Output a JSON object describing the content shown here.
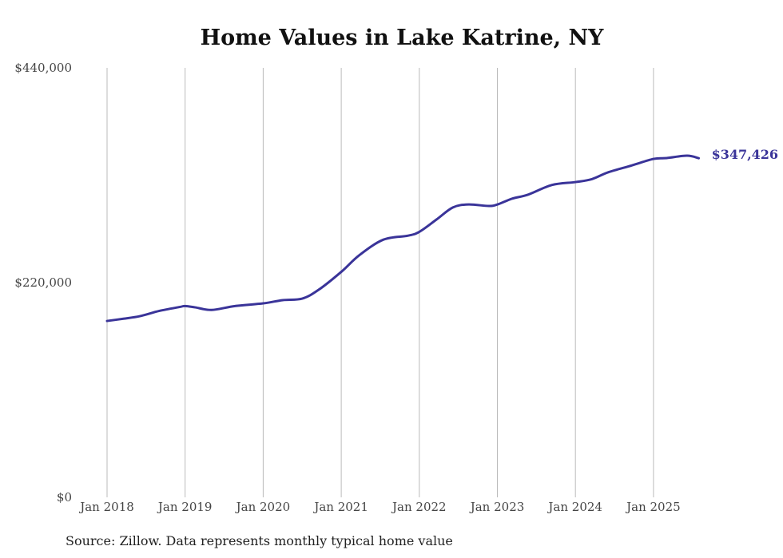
{
  "chart_data": {
    "type": "line",
    "title": "Home Values in Lake Katrine, NY",
    "source": "Source: Zillow. Data represents monthly typical home value",
    "xlabel": "",
    "ylabel": "",
    "ylim": [
      0,
      440000
    ],
    "y_ticks": [
      0,
      220000,
      440000
    ],
    "y_tick_labels": [
      "$0",
      "$220,000",
      "$440,000"
    ],
    "x_ticks": [
      2018,
      2019,
      2020,
      2021,
      2022,
      2023,
      2024,
      2025
    ],
    "x_tick_labels": [
      "Jan 2018",
      "Jan 2019",
      "Jan 2020",
      "Jan 2021",
      "Jan 2022",
      "Jan 2023",
      "Jan 2024",
      "Jan 2025"
    ],
    "grid": "vertical",
    "line_color": "#3a3499",
    "end_label": "$347,426",
    "series": [
      {
        "name": "Typical home value",
        "x": [
          2018.0,
          2018.21,
          2018.42,
          2018.67,
          2018.93,
          2019.0,
          2019.13,
          2019.34,
          2019.64,
          2020.0,
          2020.25,
          2020.5,
          2020.71,
          2021.0,
          2021.23,
          2021.54,
          2021.85,
          2022.0,
          2022.22,
          2022.43,
          2022.63,
          2022.89,
          2023.0,
          2023.19,
          2023.39,
          2023.7,
          2024.0,
          2024.21,
          2024.42,
          2024.72,
          2025.0,
          2025.17,
          2025.43,
          2025.58
        ],
        "values": [
          180700,
          183000,
          185600,
          191000,
          195000,
          196000,
          194600,
          192000,
          196000,
          198700,
          202000,
          203600,
          212600,
          231000,
          248000,
          264000,
          268000,
          272000,
          284600,
          297000,
          300000,
          298500,
          300000,
          306000,
          310000,
          320000,
          323000,
          326000,
          333000,
          340000,
          346700,
          347600,
          350000,
          347426
        ]
      }
    ]
  }
}
